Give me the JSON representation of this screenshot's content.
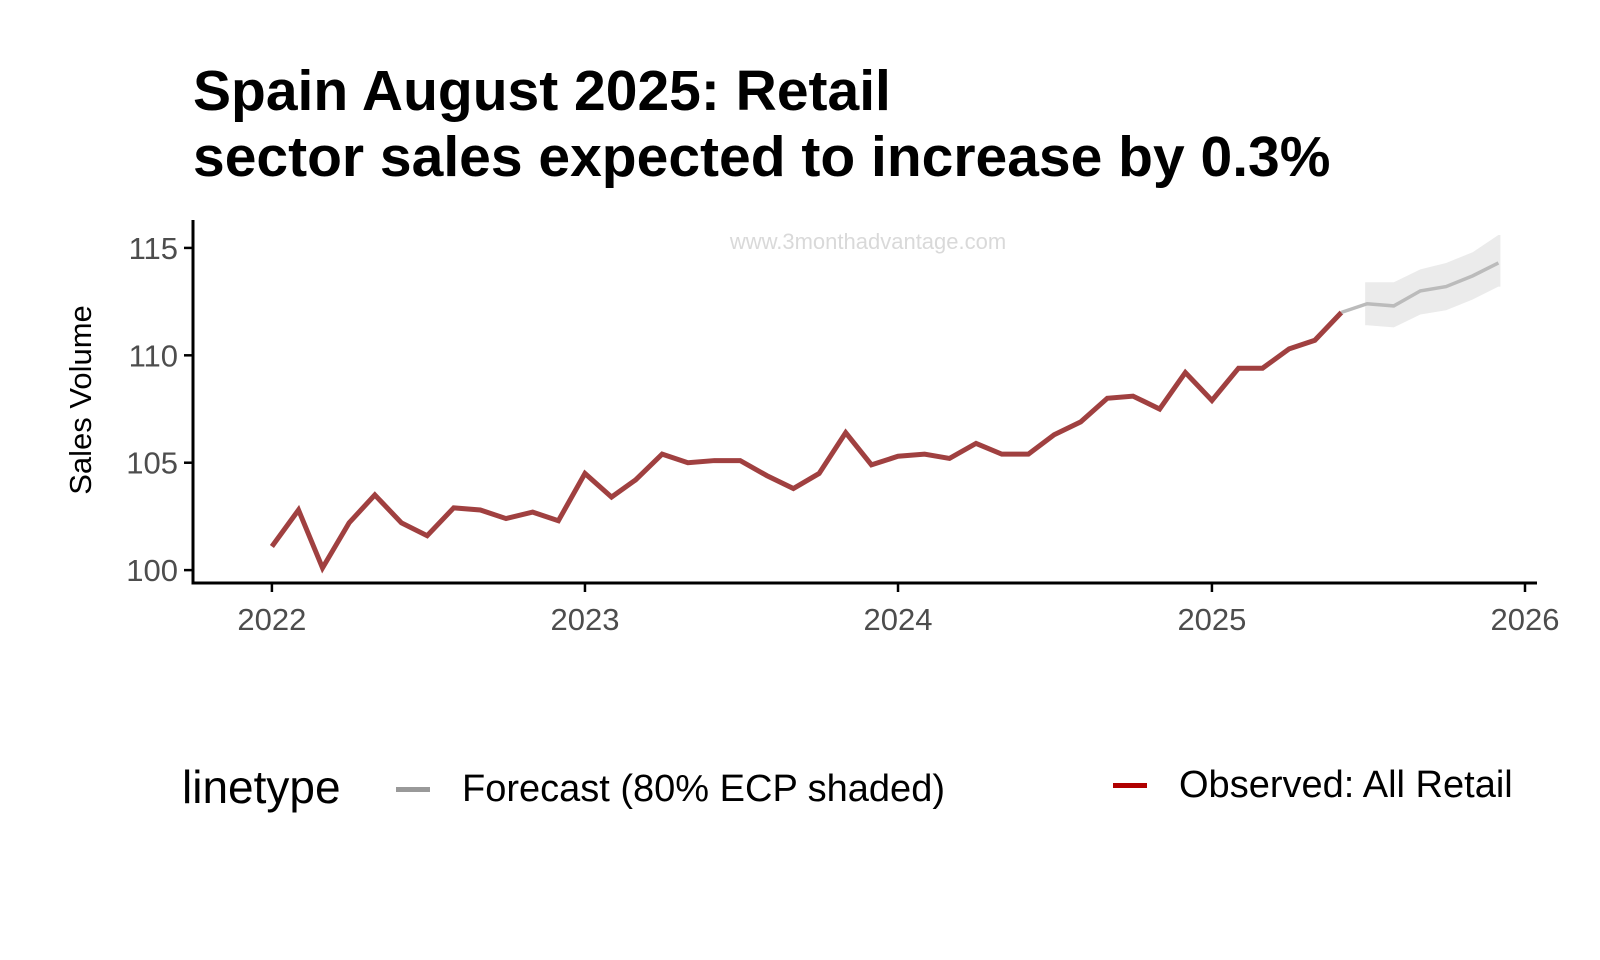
{
  "title_lines": [
    "Spain August 2025: Retail",
    "sector sales expected to increase by 0.3%"
  ],
  "watermark": "www.3monthadvantage.com",
  "legend": {
    "title": "linetype",
    "items": [
      {
        "label": "Forecast (80% ECP shaded)",
        "color": "#999999"
      },
      {
        "label": "Observed: All Retail",
        "color": "#b00000"
      }
    ]
  },
  "colors": {
    "observed": "#a04040",
    "forecast": "#bbbbbb",
    "band": "#ebebeb",
    "axis": "#000000"
  },
  "chart_data": {
    "type": "line",
    "title": "Spain August 2025: Retail sector sales expected to increase by 0.3%",
    "xlabel": "",
    "ylabel": "Sales Volume",
    "xlim": [
      "2021-10-01",
      "2026-01-15"
    ],
    "ylim": [
      99.4,
      116.3
    ],
    "x_ticks": [
      "2022",
      "2023",
      "2024",
      "2025",
      "2026"
    ],
    "y_ticks": [
      100,
      105,
      110,
      115
    ],
    "grid": false,
    "legend_position": "bottom",
    "series": [
      {
        "name": "Observed: All Retail",
        "line": "solid",
        "x": [
          "2022-01",
          "2022-02",
          "2022-03",
          "2022-04",
          "2022-05",
          "2022-06",
          "2022-07",
          "2022-08",
          "2022-09",
          "2022-10",
          "2022-11",
          "2022-12",
          "2023-01",
          "2023-02",
          "2023-03",
          "2023-04",
          "2023-05",
          "2023-06",
          "2023-07",
          "2023-08",
          "2023-09",
          "2023-10",
          "2023-11",
          "2023-12",
          "2024-01",
          "2024-02",
          "2024-03",
          "2024-04",
          "2024-05",
          "2024-06",
          "2024-07",
          "2024-08",
          "2024-09",
          "2024-10",
          "2024-11",
          "2024-12",
          "2025-01",
          "2025-02",
          "2025-03",
          "2025-04",
          "2025-05",
          "2025-06"
        ],
        "values": [
          101.1,
          102.8,
          100.1,
          102.2,
          103.5,
          102.2,
          101.6,
          102.9,
          102.8,
          102.4,
          102.7,
          102.3,
          104.5,
          103.4,
          104.2,
          105.4,
          105.0,
          105.1,
          105.1,
          104.4,
          103.8,
          104.5,
          106.4,
          104.9,
          105.3,
          105.4,
          105.2,
          105.9,
          105.4,
          105.4,
          106.3,
          106.9,
          108.0,
          108.1,
          107.5,
          109.2,
          107.9,
          109.4,
          109.4,
          110.3,
          110.7,
          112.0
        ]
      },
      {
        "name": "Forecast (80% ECP shaded)",
        "line": "solid",
        "x": [
          "2025-06",
          "2025-07",
          "2025-08",
          "2025-09",
          "2025-10",
          "2025-11",
          "2025-12"
        ],
        "values": [
          112.0,
          112.4,
          112.3,
          113.0,
          113.2,
          113.7,
          114.3
        ],
        "lower": [
          112.0,
          111.4,
          111.3,
          111.9,
          112.1,
          112.6,
          113.2
        ],
        "upper": [
          112.0,
          113.4,
          113.4,
          114.0,
          114.3,
          114.8,
          115.6
        ]
      }
    ]
  }
}
